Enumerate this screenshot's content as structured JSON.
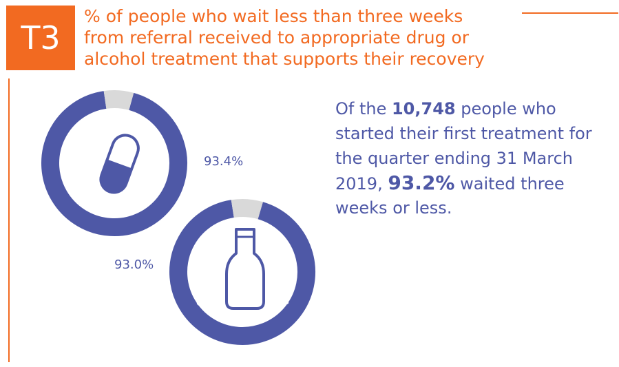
{
  "badge": "T3",
  "title_lines": [
    "% of people who wait less than three weeks",
    "from referral received to appropriate drug or",
    "alcohol treatment that supports their recovery"
  ],
  "summary": {
    "line1_pre": "Of the ",
    "people_count": "10,748",
    "line1_post": " people who",
    "line2": "started their first treatment for",
    "line3": "the quarter ending 31 March",
    "line4_pre": "2019, ",
    "overall_percent": "93.2%",
    "line4_post": " waited three",
    "line5": "weeks or less."
  },
  "colors": {
    "accent": "#f26a21",
    "ring": "#4e58a6",
    "remainder": "#d9d9d9"
  },
  "chart_data": [
    {
      "type": "pie",
      "categories": [
        "drug treatment"
      ],
      "values": [
        93.4
      ],
      "value_label": "93.4%",
      "ring_label": "drug treatment",
      "icon": "capsule-icon"
    },
    {
      "type": "pie",
      "categories": [
        "alcohol treatment"
      ],
      "values": [
        93.0
      ],
      "value_label": "93.0%",
      "ring_label": "alcohol treatment",
      "icon": "bottle-icon"
    }
  ]
}
